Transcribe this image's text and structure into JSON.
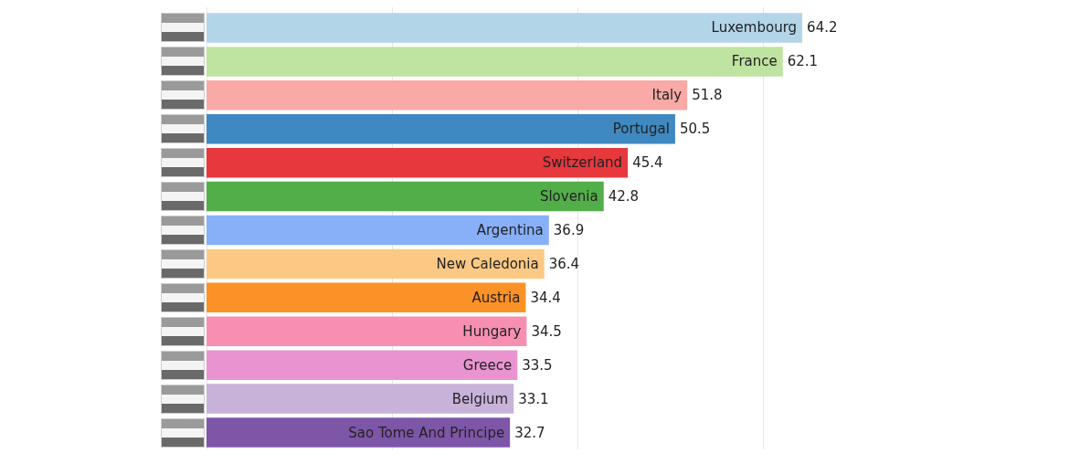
{
  "chart_data": {
    "type": "bar",
    "orientation": "horizontal",
    "categories": [
      "Luxembourg",
      "France",
      "Italy",
      "Portugal",
      "Switzerland",
      "Slovenia",
      "Argentina",
      "New Caledonia",
      "Austria",
      "Hungary",
      "Greece",
      "Belgium",
      "Sao Tome And Principe"
    ],
    "values": [
      64.2,
      62.1,
      51.8,
      50.5,
      45.4,
      42.8,
      36.9,
      36.4,
      34.4,
      34.5,
      33.5,
      33.1,
      32.7
    ],
    "colors": [
      "#b3d5e8",
      "#bfe3a0",
      "#f9a9a6",
      "#3f88c0",
      "#e6383d",
      "#52ae49",
      "#87b0f9",
      "#fcc985",
      "#fc9227",
      "#f78fb3",
      "#e994d0",
      "#c8b2d9",
      "#7e56a8"
    ],
    "xticks": [
      {
        "value": 0,
        "label": null
      },
      {
        "value": 20,
        "label": null
      },
      {
        "value": 40,
        "label": null
      },
      {
        "value": 60,
        "label": null
      }
    ],
    "grid": "x",
    "data_labels": true
  }
}
